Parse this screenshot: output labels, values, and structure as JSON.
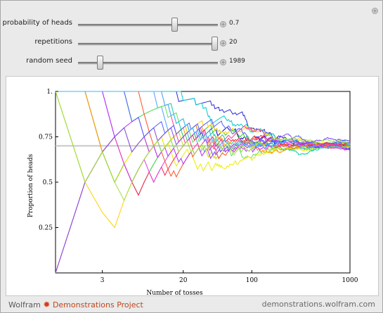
{
  "controls": {
    "probability": {
      "label": "probability of heads",
      "value": "0.7",
      "min": 0,
      "max": 1,
      "current": 0.7
    },
    "repetitions": {
      "label": "repetitions",
      "value": "20",
      "min": 1,
      "max": 20,
      "current": 20
    },
    "seed": {
      "label": "random seed",
      "value": "1989",
      "min": 1500,
      "max": 5000,
      "current": 1989
    }
  },
  "footer": {
    "brand_left": "Wolfram",
    "brand_right": "Demonstrations Project",
    "site": "demonstrations.wolfram.com"
  },
  "colors": {
    "reference_line": "#c8c8c8",
    "series": [
      "#0000cc",
      "#2a2ad8",
      "#4aa0ff",
      "#00cccc",
      "#00d2a0",
      "#33cc33",
      "#66e05a",
      "#c8e000",
      "#f0ea00",
      "#ffd000",
      "#ff9a00",
      "#ff5020",
      "#ff2050",
      "#ff3ca0",
      "#e03ae0",
      "#b030ff",
      "#7a4cff",
      "#5060ff",
      "#39b7ff",
      "#a0e040"
    ]
  },
  "chart_data": {
    "type": "line",
    "title": "",
    "xlabel": "Number of tosses",
    "ylabel": "Proportion of heads",
    "xscale": "log",
    "xlim": [
      1,
      1000
    ],
    "ylim": [
      0,
      1
    ],
    "xticks": [
      "3",
      "20",
      "100",
      "1000"
    ],
    "yticks": [
      "0.25",
      "0.5",
      "0.75",
      "1."
    ],
    "reference_value": 0.7,
    "series_count": 20,
    "n_tosses": 1000,
    "probability": 0.7
  }
}
